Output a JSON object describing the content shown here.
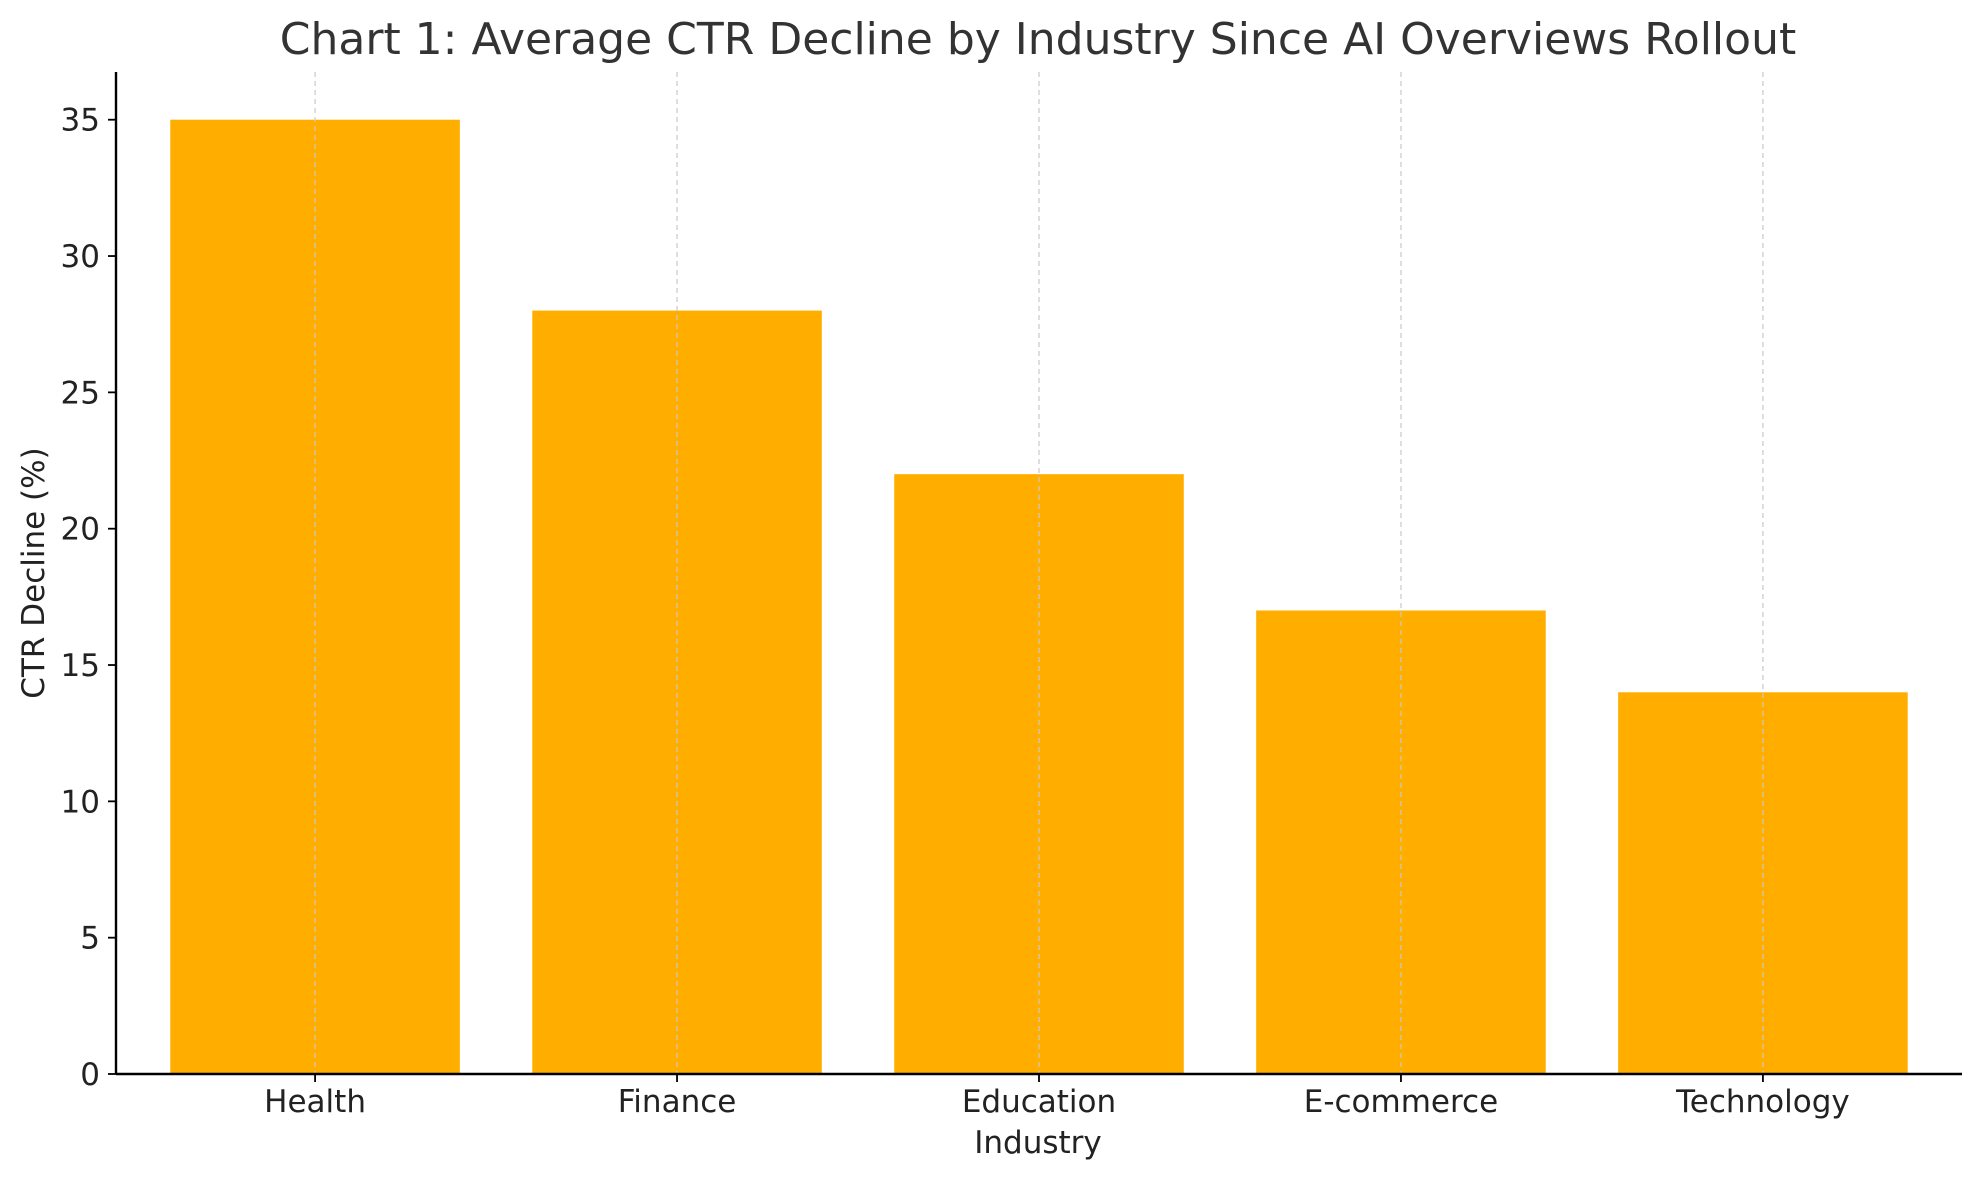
{
  "chart_data": {
    "type": "bar",
    "title": "Chart 1: Average CTR Decline by Industry Since AI Overviews Rollout",
    "xlabel": "Industry",
    "ylabel": "CTR Decline (%)",
    "categories": [
      "Health",
      "Finance",
      "Education",
      "E-commerce",
      "Technology"
    ],
    "values": [
      35,
      28,
      22,
      17,
      14
    ],
    "ylim": [
      0,
      36.75
    ],
    "yticks": [
      0,
      5,
      10,
      15,
      20,
      25,
      30,
      35
    ],
    "grid": "x-dashed",
    "legend": "none",
    "bar_color": "#FFAE00"
  }
}
